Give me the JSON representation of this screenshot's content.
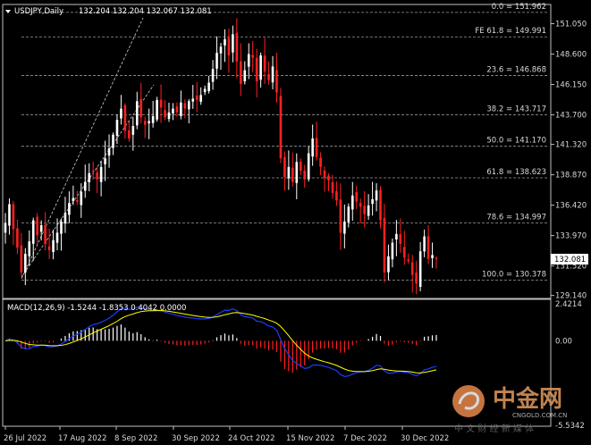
{
  "header": {
    "symbol_tf": "USDJPY,Daily",
    "ohlc": "132.204 132.204 132.067 132.081"
  },
  "price_axis": {
    "ticks": [
      "151.050",
      "148.600",
      "146.150",
      "143.700",
      "141.320",
      "138.870",
      "136.420",
      "133.970",
      "131.520",
      "129.140"
    ],
    "current_price": "132.081"
  },
  "fib_levels": [
    {
      "label": "0.0 = 151.962"
    },
    {
      "label": "FE 61.8 = 149.991"
    },
    {
      "label": "23.6 = 146.868"
    },
    {
      "label": "38.2 = 143.717"
    },
    {
      "label": "50.0 = 141.170"
    },
    {
      "label": "61.8 = 138.623"
    },
    {
      "label": "78.6 = 134.997"
    },
    {
      "label": "100.0 = 130.378"
    }
  ],
  "macd": {
    "title": "MACD(12,26,9) -1.5244 -1.8353 0.4042 0.0000",
    "ticks": [
      "2.4214",
      "0.00",
      "-5.5342"
    ]
  },
  "date_axis": [
    "26 Jul 2022",
    "17 Aug 2022",
    "8 Sep 2022",
    "30 Sep 2022",
    "24 Oct 2022",
    "15 Nov 2022",
    "7 Dec 2022",
    "30 Dec 2022"
  ],
  "watermark": {
    "brand": "中金网",
    "url": "CNGOLD.COM.CN",
    "slogan": "中 文 财 经 新 媒 体"
  },
  "colors": {
    "bull": "#ffffff",
    "bear": "#ff2020",
    "signal": "#ffff00",
    "macd_line": "#1e3cff",
    "grid": "#9a9a9a"
  },
  "chart_data": {
    "type": "candlestick",
    "title": "USDJPY,Daily",
    "ylim": [
      128.9,
      152.6
    ],
    "close_series": [
      135.0,
      136.5,
      134.5,
      133.0,
      131.0,
      132.5,
      133.5,
      135.2,
      134.0,
      134.8,
      133.3,
      132.8,
      133.6,
      134.2,
      135.1,
      135.8,
      136.6,
      137.0,
      136.7,
      137.5,
      138.3,
      139.0,
      139.2,
      138.5,
      139.5,
      140.2,
      141.0,
      142.1,
      143.3,
      144.2,
      142.4,
      141.8,
      142.8,
      144.8,
      143.5,
      142.9,
      143.2,
      143.6,
      144.9,
      144.3,
      143.5,
      143.9,
      144.2,
      143.9,
      144.7,
      144.2,
      144.8,
      145.0,
      144.9,
      145.3,
      145.8,
      146.3,
      147.4,
      148.7,
      149.2,
      149.8,
      148.5,
      150.2,
      148.0,
      146.2,
      147.3,
      148.6,
      148.3,
      146.4,
      148.5,
      147.2,
      146.5,
      147.6,
      145.5,
      140.2,
      138.7,
      139.5,
      138.3,
      139.9,
      139.2,
      138.5,
      140.6,
      141.8,
      140.3,
      139.5,
      138.6,
      138.4,
      137.4,
      136.8,
      134.2,
      135.1,
      136.3,
      137.2,
      136.7,
      136.3,
      135.7,
      136.4,
      136.9,
      137.6,
      135.2,
      131.0,
      132.3,
      133.4,
      134.1,
      133.3,
      132.2,
      131.9,
      130.8,
      130.1,
      132.7,
      133.9,
      132.1,
      132.4,
      132.1
    ],
    "macd": {
      "last": -1.5244,
      "signal": -1.8353,
      "hist": 0.4042
    }
  }
}
